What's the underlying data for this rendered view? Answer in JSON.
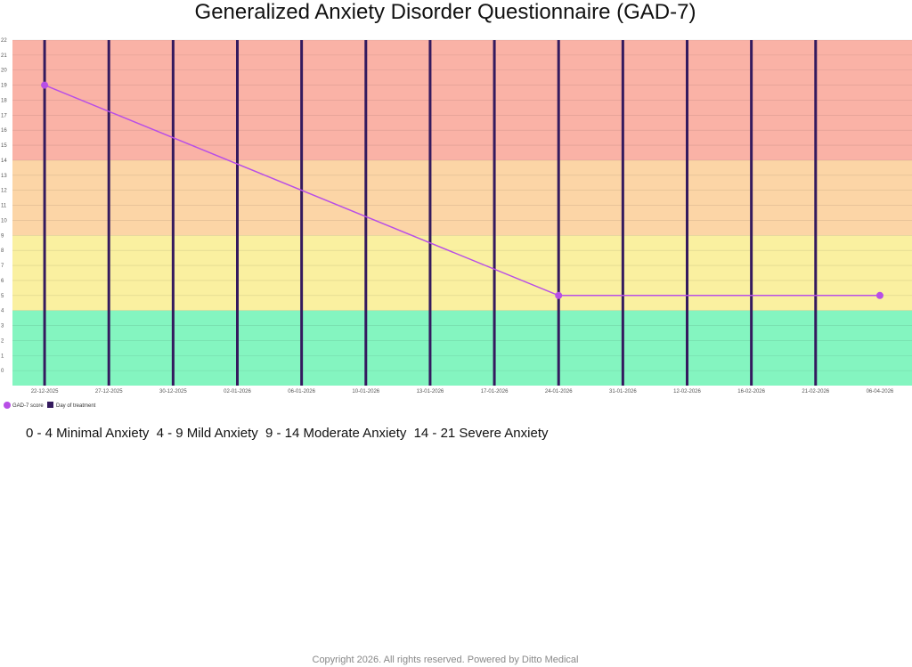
{
  "page": {
    "title": "Generalized Anxiety Disorder Questionnaire (GAD-7)",
    "footer": "Copyright  2026. All rights reserved. Powered by Ditto Medical"
  },
  "severity_legend": [
    "0 - 4 Minimal Anxiety",
    "4 - 9 Mild Anxiety",
    "9 - 14 Moderate Anxiety",
    "14 - 21 Severe Anxiety"
  ],
  "chart_data": {
    "type": "line",
    "title": "Generalized Anxiety Disorder Questionnaire (GAD-7)",
    "xlabel": "",
    "ylabel": "",
    "ylim": [
      -1,
      22
    ],
    "yticks": [
      0,
      1,
      2,
      3,
      4,
      5,
      6,
      7,
      8,
      9,
      10,
      11,
      12,
      13,
      14,
      15,
      16,
      17,
      18,
      19,
      20,
      21,
      22
    ],
    "grid": true,
    "legend": "bottom-left",
    "categories": [
      "22-12-2025",
      "27-12-2025",
      "30-12-2025",
      "02-01-2026",
      "06-01-2026",
      "10-01-2026",
      "13-01-2026",
      "17-01-2026",
      "24-01-2026",
      "31-01-2026",
      "12-02-2026",
      "16-02-2026",
      "21-02-2026",
      "06-04-2026"
    ],
    "series": [
      {
        "name": "GAD-7 score",
        "type": "line",
        "color": "#b84ee6",
        "points": [
          {
            "x": "22-12-2025",
            "y": 19
          },
          {
            "x": "24-01-2026",
            "y": 5
          },
          {
            "x": "06-04-2026",
            "y": 5
          }
        ]
      },
      {
        "name": "Day of treatment",
        "type": "bar",
        "color": "#341a5e",
        "x": [
          "22-12-2025",
          "27-12-2025",
          "30-12-2025",
          "02-01-2026",
          "06-01-2026",
          "10-01-2026",
          "13-01-2026",
          "17-01-2026",
          "24-01-2026",
          "31-01-2026",
          "12-02-2026",
          "16-02-2026",
          "21-02-2026"
        ]
      }
    ],
    "bands": [
      {
        "from": -1,
        "to": 4,
        "color": "#84f5c0"
      },
      {
        "from": 4,
        "to": 9,
        "color": "#faf0a0"
      },
      {
        "from": 9,
        "to": 14,
        "color": "#fcd5a6"
      },
      {
        "from": 14,
        "to": 22,
        "color": "#fab2a6"
      }
    ]
  }
}
